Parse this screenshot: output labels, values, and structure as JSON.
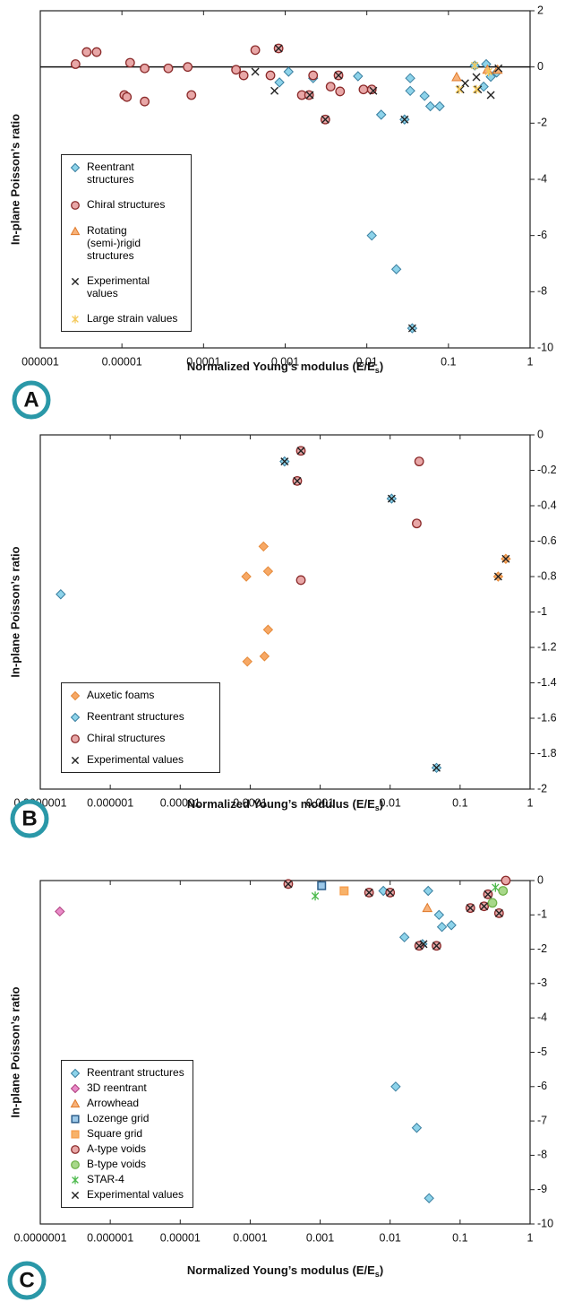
{
  "chart_data": [
    {
      "type": "scatter",
      "panel_label": "A",
      "y_label": "In-plane Poisson’s ratio",
      "x_label": "Normalized Young’s modulus (E/E",
      "x_label_sub": "s",
      "x_label_end": ")",
      "xscale": "log",
      "xlim": [
        1e-06,
        1
      ],
      "xticks": [
        {
          "value": 1e-06,
          "label": "000001"
        },
        1e-05,
        0.0001,
        0.001,
        0.01,
        0.1,
        1
      ],
      "ylim": [
        -10,
        2
      ],
      "yticks": [
        2,
        0,
        -2,
        -4,
        -6,
        -8,
        -10
      ],
      "zero_line": true,
      "legend": "lower left",
      "series": [
        {
          "name": "Reentrant structures",
          "marker": "diamond",
          "color": "#8dd3ea",
          "edge_color": "#3a7fa0",
          "x": [
            0.00085,
            0.0011,
            0.0022,
            0.0078,
            0.015,
            0.034,
            0.034,
            0.051,
            0.06,
            0.078,
            0.015,
            0.029,
            0.0115,
            0.023,
            0.036,
            0.21,
            0.29,
            0.33,
            0.27,
            0.39
          ],
          "values": [
            -0.55,
            -0.17,
            -0.4,
            -0.33,
            -1.7,
            -0.4,
            -0.85,
            -1.03,
            -1.4,
            -1.4,
            -1.7,
            -1.87,
            -6,
            -7.2,
            -9.3,
            0.05,
            0.1,
            -0.35,
            -0.7,
            -0.2
          ]
        },
        {
          "name": "Chiral structures",
          "marker": "circle",
          "color": "#e8a7a7",
          "edge_color": "#8b2a2a",
          "x": [
            2.7e-06,
            3.7e-06,
            4.9e-06,
            1.26e-05,
            1.9e-05,
            3.7e-05,
            6.4e-05,
            1.07e-05,
            1.15e-05,
            1.9e-05,
            7.1e-05,
            0.00025,
            0.00031,
            0.00043,
            0.00066,
            0.00083,
            0.0016,
            0.00196,
            0.0022,
            0.0036,
            0.0047,
            0.0031,
            0.0045,
            0.0091,
            0.0115
          ],
          "values": [
            0.1,
            0.53,
            0.53,
            0.15,
            -0.05,
            -0.05,
            0,
            -1,
            -1.07,
            -1.23,
            -1,
            -0.1,
            -0.3,
            0.6,
            -0.3,
            0.66,
            -1,
            -1,
            -0.3,
            -0.7,
            -0.87,
            -1.87,
            -0.3,
            -0.8,
            -0.8
          ]
        },
        {
          "name": "Rotating (semi-)rigid structures",
          "marker": "triangle",
          "color": "#f7b27a",
          "edge_color": "#e07a2a",
          "x": [
            0.126,
            0.3,
            0.4
          ],
          "values": [
            -0.36,
            -0.1,
            -0.1
          ]
        },
        {
          "name": "Experimental values",
          "marker": "x",
          "color": "#222222",
          "edge_color": "#222222",
          "x": [
            0.00043,
            0.00074,
            0.00083,
            0.002,
            0.0031,
            0.0045,
            0.012,
            0.029,
            0.036,
            0.14,
            0.16,
            0.22,
            0.23,
            0.33,
            0.41
          ],
          "values": [
            -0.17,
            -0.85,
            0.66,
            -1,
            -1.87,
            -0.3,
            -0.85,
            -1.87,
            -9.3,
            -0.8,
            -0.58,
            -0.36,
            -0.8,
            -1,
            -0.05
          ]
        },
        {
          "name": "Large strain values",
          "marker": "asterisk",
          "color": "#f4c95a",
          "edge_color": "#f4c95a",
          "x": [
            0.135,
            0.22,
            0.21,
            0.31
          ],
          "values": [
            -0.8,
            -0.8,
            0.05,
            -0.17
          ]
        }
      ]
    },
    {
      "type": "scatter",
      "panel_label": "B",
      "y_label": "In-plane Poisson’s ratio",
      "x_label": "Normalized Young’s modulus (E/E",
      "x_label_sub": "s",
      "x_label_end": ")",
      "xscale": "log",
      "xlim": [
        1e-07,
        1
      ],
      "xticks": [
        {
          "value": 1e-07,
          "label": "0.0000001"
        },
        1e-06,
        1e-05,
        0.0001,
        0.001,
        0.01,
        0.1,
        1
      ],
      "ylim": [
        -2,
        0
      ],
      "yticks": [
        0,
        -0.2,
        -0.4,
        -0.6,
        -0.8,
        -1,
        -1.2,
        -1.4,
        -1.6,
        -1.8,
        -2
      ],
      "legend": "lower left",
      "series": [
        {
          "name": "Auxetic foams",
          "marker": "diamond",
          "color": "#f7a865",
          "edge_color": "#e58a3a",
          "x": [
            0.000155,
            8.8e-05,
            0.00018,
            0.00018,
            9.1e-05,
            0.00016,
            0.35,
            0.45
          ],
          "values": [
            -0.63,
            -0.8,
            -0.77,
            -1.1,
            -1.28,
            -1.25,
            -0.8,
            -0.7
          ]
        },
        {
          "name": "Reentrant structures",
          "marker": "diamond",
          "color": "#8dd3ea",
          "edge_color": "#3a7fa0",
          "x": [
            1.96e-07,
            0.00031,
            0.0105,
            0.046
          ],
          "values": [
            -0.9,
            -0.15,
            -0.36,
            -1.88
          ]
        },
        {
          "name": "Chiral structures",
          "marker": "circle",
          "color": "#e8a7a7",
          "edge_color": "#8b2a2a",
          "x": [
            0.00053,
            0.00047,
            0.00053,
            0.026,
            0.024
          ],
          "values": [
            -0.09,
            -0.26,
            -0.82,
            -0.15,
            -0.5
          ]
        },
        {
          "name": "Experimental values",
          "marker": "x",
          "color": "#222222",
          "edge_color": "#222222",
          "x": [
            0.00031,
            0.00053,
            0.00047,
            0.0105,
            0.046,
            0.35,
            0.45
          ],
          "values": [
            -0.15,
            -0.09,
            -0.26,
            -0.36,
            -1.88,
            -0.8,
            -0.7
          ]
        }
      ]
    },
    {
      "type": "scatter",
      "panel_label": "C",
      "y_label": "In-plane Poisson’s ratio",
      "x_label": "Normalized Young’s modulus (E/E",
      "x_label_sub": "s",
      "x_label_end": ")",
      "xscale": "log",
      "xlim": [
        1e-07,
        1
      ],
      "xticks": [
        {
          "value": 1e-07,
          "label": "0.0000001"
        },
        1e-06,
        1e-05,
        0.0001,
        0.001,
        0.01,
        0.1,
        1
      ],
      "ylim": [
        -10,
        0
      ],
      "yticks": [
        0,
        -1,
        -2,
        -3,
        -4,
        -5,
        -6,
        -7,
        -8,
        -9,
        -10
      ],
      "legend": "lower left",
      "series": [
        {
          "name": "Reentrant structures",
          "marker": "diamond",
          "color": "#8dd3ea",
          "edge_color": "#3a7fa0",
          "x": [
            0.008,
            0.035,
            0.05,
            0.055,
            0.075,
            0.016,
            0.029,
            0.012,
            0.024,
            0.036
          ],
          "values": [
            -0.3,
            -0.3,
            -1,
            -1.35,
            -1.3,
            -1.65,
            -1.85,
            -6,
            -7.2,
            -9.25
          ]
        },
        {
          "name": "3D reentrant",
          "marker": "diamond",
          "color": "#e98bc8",
          "edge_color": "#b0407f",
          "x": [
            1.9e-07
          ],
          "values": [
            -0.9
          ]
        },
        {
          "name": "Arrowhead",
          "marker": "triangle",
          "color": "#f7b27a",
          "edge_color": "#e07a2a",
          "x": [
            0.034
          ],
          "values": [
            -0.8
          ]
        },
        {
          "name": "Lozenge grid",
          "marker": "square",
          "color": "#9cc8e8",
          "edge_color": "#2d5e8a",
          "x": [
            0.00105
          ],
          "values": [
            -0.15
          ]
        },
        {
          "name": "Square grid",
          "marker": "square",
          "color": "#f7b26a",
          "edge_color": "#f7a050",
          "x": [
            0.0022
          ],
          "values": [
            -0.3
          ]
        },
        {
          "name": "A-type voids",
          "marker": "circle",
          "color": "#e8a7a7",
          "edge_color": "#8b2a2a",
          "x": [
            0.00035,
            0.005,
            0.01,
            0.026,
            0.046,
            0.14,
            0.22,
            0.25,
            0.36,
            0.45
          ],
          "values": [
            -0.1,
            -0.35,
            -0.35,
            -1.9,
            -1.9,
            -0.8,
            -0.75,
            -0.4,
            -0.95,
            0
          ]
        },
        {
          "name": "B-type voids",
          "marker": "circle",
          "color": "#a8d88a",
          "edge_color": "#6fb24a",
          "x": [
            0.41,
            0.29
          ],
          "values": [
            -0.3,
            -0.65
          ]
        },
        {
          "name": "STAR-4",
          "marker": "asterisk",
          "color": "#4cba4c",
          "edge_color": "#4cba4c",
          "x": [
            0.00085,
            0.32
          ],
          "values": [
            -0.45,
            -0.2
          ]
        },
        {
          "name": "Experimental values",
          "marker": "x",
          "color": "#222222",
          "edge_color": "#222222",
          "x": [
            0.00035,
            0.005,
            0.01,
            0.026,
            0.03,
            0.046,
            0.14,
            0.22,
            0.25,
            0.36
          ],
          "values": [
            -0.1,
            -0.35,
            -0.35,
            -1.9,
            -1.85,
            -1.9,
            -0.8,
            -0.75,
            -0.4,
            -0.95
          ]
        }
      ]
    }
  ]
}
